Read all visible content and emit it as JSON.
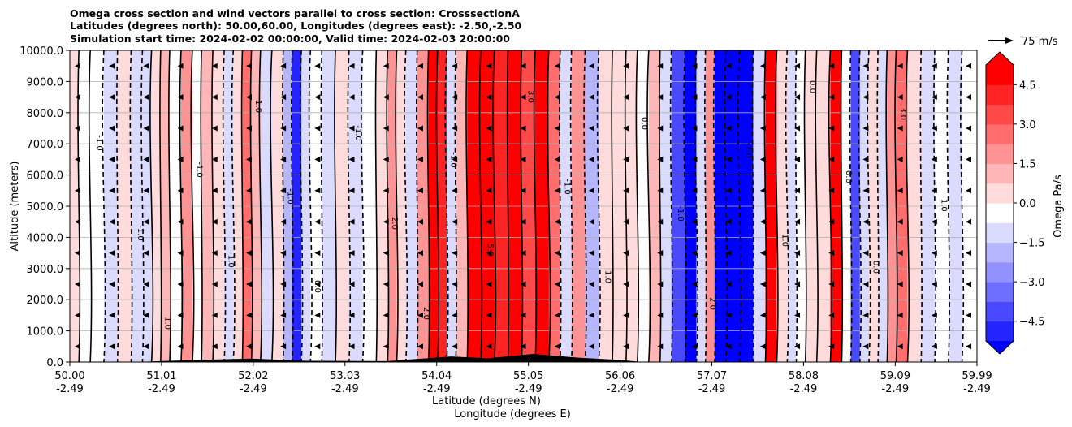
{
  "chart_data": {
    "type": "heatmap",
    "title_lines": [
      "Omega cross section and wind vectors parallel to cross section: CrosssectionA",
      "Latitudes (degrees north): 50.00,60.00, Longitudes (degrees east): -2.50,-2.50",
      "Simulation start time: 2024-02-02 00:00:00, Valid time: 2024-02-03 20:00:00"
    ],
    "xlabel": "Latitude (degrees N)",
    "xlabel2": "Longitude (degrees E)",
    "ylabel": "Altitude (meters)",
    "x_ticks": [
      {
        "lat": "50.00",
        "lon": "-2.49",
        "value": 50.0
      },
      {
        "lat": "51.01",
        "lon": "-2.49",
        "value": 51.01
      },
      {
        "lat": "52.02",
        "lon": "-2.49",
        "value": 52.02
      },
      {
        "lat": "53.03",
        "lon": "-2.49",
        "value": 53.03
      },
      {
        "lat": "54.04",
        "lon": "-2.49",
        "value": 54.04
      },
      {
        "lat": "55.05",
        "lon": "-2.49",
        "value": 55.05
      },
      {
        "lat": "56.06",
        "lon": "-2.49",
        "value": 56.06
      },
      {
        "lat": "57.07",
        "lon": "-2.49",
        "value": 57.07
      },
      {
        "lat": "58.08",
        "lon": "-2.49",
        "value": 58.08
      },
      {
        "lat": "59.09",
        "lon": "-2.49",
        "value": 59.09
      },
      {
        "lat": "59.99",
        "lon": "-2.49",
        "value": 59.99
      }
    ],
    "xlim": [
      50.0,
      59.99
    ],
    "y_ticks": [
      "0.0",
      "1000.0",
      "2000.0",
      "3000.0",
      "4000.0",
      "5000.0",
      "6000.0",
      "7000.0",
      "8000.0",
      "9000.0",
      "10000.0"
    ],
    "ylim": [
      0,
      10000
    ],
    "grid": "horizontal",
    "colorbar": {
      "label": "Omega Pa/s",
      "range": [
        -5.25,
        5.25
      ],
      "extend": "both",
      "tick_values": [
        4.5,
        3.0,
        1.5,
        0.0,
        -1.5,
        -3.0,
        -4.5
      ],
      "tick_labels": [
        "4.5",
        "3.0",
        "1.5",
        "0.0",
        "−1.5",
        "−3.0",
        "−4.5"
      ]
    },
    "quiver_key": {
      "label": "75 m/s"
    },
    "contour_labels": [
      "0.0",
      "1.0",
      "-1.0",
      "2.0",
      "3.0",
      "5.0"
    ],
    "omega_columns": [
      {
        "lat": 50.05,
        "value": 0.6
      },
      {
        "lat": 50.15,
        "value": 0.3
      },
      {
        "lat": 50.3,
        "value": -0.2
      },
      {
        "lat": 50.45,
        "value": -0.6
      },
      {
        "lat": 50.6,
        "value": 0.5
      },
      {
        "lat": 50.75,
        "value": -1.0
      },
      {
        "lat": 50.85,
        "value": -0.5
      },
      {
        "lat": 50.95,
        "value": 0.6
      },
      {
        "lat": 51.05,
        "value": 1.5
      },
      {
        "lat": 51.15,
        "value": 0.3
      },
      {
        "lat": 51.3,
        "value": 2.5
      },
      {
        "lat": 51.4,
        "value": -0.3
      },
      {
        "lat": 51.5,
        "value": 1.2
      },
      {
        "lat": 51.65,
        "value": 0.8
      },
      {
        "lat": 51.75,
        "value": -0.6
      },
      {
        "lat": 51.85,
        "value": 0.6
      },
      {
        "lat": 51.95,
        "value": 2.8
      },
      {
        "lat": 52.05,
        "value": 1.3
      },
      {
        "lat": 52.15,
        "value": -0.4
      },
      {
        "lat": 52.3,
        "value": 0.4
      },
      {
        "lat": 52.4,
        "value": -1.5
      },
      {
        "lat": 52.5,
        "value": -4.5
      },
      {
        "lat": 52.6,
        "value": -0.8
      },
      {
        "lat": 52.7,
        "value": 0.3
      },
      {
        "lat": 52.85,
        "value": -0.4
      },
      {
        "lat": 53.0,
        "value": 0.5
      },
      {
        "lat": 53.15,
        "value": -0.6
      },
      {
        "lat": 53.3,
        "value": 0.2
      },
      {
        "lat": 53.45,
        "value": 1.0
      },
      {
        "lat": 53.55,
        "value": 2.0
      },
      {
        "lat": 53.65,
        "value": 0.5
      },
      {
        "lat": 53.75,
        "value": -0.8
      },
      {
        "lat": 53.9,
        "value": 2.5
      },
      {
        "lat": 54.0,
        "value": 5.0
      },
      {
        "lat": 54.1,
        "value": 4.5
      },
      {
        "lat": 54.2,
        "value": -0.6
      },
      {
        "lat": 54.3,
        "value": 1.5
      },
      {
        "lat": 54.45,
        "value": 5.0
      },
      {
        "lat": 54.6,
        "value": 5.0
      },
      {
        "lat": 54.75,
        "value": 4.5
      },
      {
        "lat": 54.9,
        "value": 5.0
      },
      {
        "lat": 55.05,
        "value": 4.0
      },
      {
        "lat": 55.2,
        "value": 5.0
      },
      {
        "lat": 55.35,
        "value": 3.0
      },
      {
        "lat": 55.45,
        "value": -1.0
      },
      {
        "lat": 55.6,
        "value": 2.0
      },
      {
        "lat": 55.75,
        "value": -1.5
      },
      {
        "lat": 55.9,
        "value": 1.0
      },
      {
        "lat": 56.05,
        "value": 0.5
      },
      {
        "lat": 56.2,
        "value": 0.8
      },
      {
        "lat": 56.3,
        "value": 0.3
      },
      {
        "lat": 56.45,
        "value": 1.5
      },
      {
        "lat": 56.55,
        "value": -0.5
      },
      {
        "lat": 56.7,
        "value": -3.5
      },
      {
        "lat": 56.85,
        "value": -5.0
      },
      {
        "lat": 56.95,
        "value": -0.8
      },
      {
        "lat": 57.05,
        "value": 2.5
      },
      {
        "lat": 57.15,
        "value": -5.0
      },
      {
        "lat": 57.3,
        "value": -5.0
      },
      {
        "lat": 57.45,
        "value": -5.0
      },
      {
        "lat": 57.6,
        "value": -0.5
      },
      {
        "lat": 57.72,
        "value": 5.0
      },
      {
        "lat": 57.85,
        "value": 1.0
      },
      {
        "lat": 57.95,
        "value": -0.6
      },
      {
        "lat": 58.05,
        "value": -0.3
      },
      {
        "lat": 58.15,
        "value": 0.5
      },
      {
        "lat": 58.3,
        "value": 0.8
      },
      {
        "lat": 58.45,
        "value": 5.0
      },
      {
        "lat": 58.55,
        "value": 0.3
      },
      {
        "lat": 58.65,
        "value": -4.0
      },
      {
        "lat": 58.75,
        "value": -1.0
      },
      {
        "lat": 58.85,
        "value": 0.4
      },
      {
        "lat": 58.95,
        "value": -0.5
      },
      {
        "lat": 59.05,
        "value": 2.0
      },
      {
        "lat": 59.15,
        "value": 2.8
      },
      {
        "lat": 59.3,
        "value": 0.4
      },
      {
        "lat": 59.45,
        "value": -0.6
      },
      {
        "lat": 59.6,
        "value": -0.3
      },
      {
        "lat": 59.75,
        "value": -0.8
      },
      {
        "lat": 59.9,
        "value": -0.2
      }
    ],
    "wind_rows_m": [
      500,
      1500,
      2500,
      3500,
      4500,
      5500,
      6500,
      7500,
      8500,
      9500
    ]
  },
  "colors": {
    "neg_max": "#0000ff",
    "pos_max": "#ff0000",
    "neutral": "#ffffff",
    "contour": "#000000",
    "grid": "#b0b0b0"
  }
}
